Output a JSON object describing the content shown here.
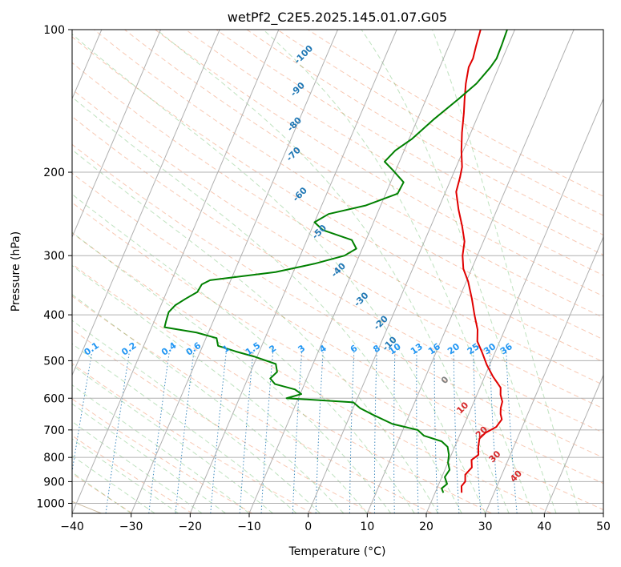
{
  "chart_data": {
    "type": "line",
    "title": "wetPf2_C2E5.2025.145.01.07.G05",
    "xlabel": "Temperature (°C)",
    "ylabel": "Pressure (hPa)",
    "xlim": [
      -40,
      50
    ],
    "ylim": [
      1050,
      100
    ],
    "x_ticks": [
      -40,
      -30,
      -20,
      -10,
      0,
      10,
      20,
      30,
      40,
      50
    ],
    "y_ticks": [
      100,
      200,
      300,
      400,
      500,
      600,
      700,
      800,
      900,
      1000
    ],
    "series": [
      {
        "name": "Temperature",
        "color": "#e00000",
        "points": [
          [
            950,
            24.5
          ],
          [
            920,
            24.0
          ],
          [
            900,
            24.3
          ],
          [
            870,
            23.8
          ],
          [
            840,
            24.4
          ],
          [
            810,
            23.8
          ],
          [
            790,
            24.6
          ],
          [
            760,
            24.0
          ],
          [
            730,
            23.6
          ],
          [
            710,
            24.2
          ],
          [
            690,
            25.6
          ],
          [
            665,
            26.0
          ],
          [
            648,
            25.4
          ],
          [
            630,
            25.0
          ],
          [
            610,
            24.8
          ],
          [
            590,
            24.0
          ],
          [
            570,
            23.5
          ],
          [
            540,
            21.4
          ],
          [
            510,
            19.5
          ],
          [
            480,
            17.8
          ],
          [
            455,
            16.2
          ],
          [
            430,
            15.4
          ],
          [
            400,
            13.8
          ],
          [
            370,
            12.2
          ],
          [
            340,
            10.3
          ],
          [
            320,
            8.6
          ],
          [
            300,
            7.5
          ],
          [
            280,
            6.8
          ],
          [
            260,
            5.3
          ],
          [
            240,
            3.5
          ],
          [
            220,
            1.8
          ],
          [
            205,
            1.4
          ],
          [
            195,
            1.0
          ],
          [
            180,
            -0.3
          ],
          [
            165,
            -1.5
          ],
          [
            150,
            -2.6
          ],
          [
            140,
            -3.5
          ],
          [
            130,
            -4.4
          ],
          [
            120,
            -5.1
          ],
          [
            115,
            -5.0
          ],
          [
            108,
            -5.4
          ],
          [
            100,
            -5.8
          ]
        ]
      },
      {
        "name": "Dew point",
        "color": "#008000",
        "points": [
          [
            950,
            21.4
          ],
          [
            930,
            20.8
          ],
          [
            910,
            21.4
          ],
          [
            880,
            20.5
          ],
          [
            850,
            20.8
          ],
          [
            820,
            20.0
          ],
          [
            790,
            19.6
          ],
          [
            760,
            18.8
          ],
          [
            740,
            17.4
          ],
          [
            720,
            14.0
          ],
          [
            700,
            12.5
          ],
          [
            680,
            7.8
          ],
          [
            650,
            3.8
          ],
          [
            630,
            1.2
          ],
          [
            612,
            -0.4
          ],
          [
            600,
            -12.0
          ],
          [
            588,
            -9.8
          ],
          [
            575,
            -11.2
          ],
          [
            560,
            -15.0
          ],
          [
            545,
            -16.2
          ],
          [
            528,
            -15.5
          ],
          [
            508,
            -16.3
          ],
          [
            490,
            -20.5
          ],
          [
            478,
            -24.0
          ],
          [
            465,
            -27.4
          ],
          [
            448,
            -28.2
          ],
          [
            436,
            -32.0
          ],
          [
            425,
            -37.8
          ],
          [
            412,
            -38.0
          ],
          [
            395,
            -38.2
          ],
          [
            382,
            -37.6
          ],
          [
            370,
            -36.3
          ],
          [
            358,
            -34.8
          ],
          [
            345,
            -34.6
          ],
          [
            338,
            -33.5
          ],
          [
            325,
            -23.0
          ],
          [
            312,
            -17.0
          ],
          [
            300,
            -12.5
          ],
          [
            290,
            -11.0
          ],
          [
            278,
            -12.4
          ],
          [
            265,
            -18.0
          ],
          [
            255,
            -20.0
          ],
          [
            245,
            -18.2
          ],
          [
            235,
            -12.5
          ],
          [
            222,
            -8.0
          ],
          [
            210,
            -7.8
          ],
          [
            198,
            -10.5
          ],
          [
            190,
            -12.5
          ],
          [
            180,
            -11.5
          ],
          [
            170,
            -9.5
          ],
          [
            155,
            -7.3
          ],
          [
            140,
            -4.5
          ],
          [
            130,
            -2.6
          ],
          [
            120,
            -1.4
          ],
          [
            115,
            -1.0
          ],
          [
            108,
            -1.1
          ],
          [
            100,
            -1.3
          ]
        ]
      }
    ],
    "annotations": {
      "mixing_ratio_labels": [
        "0.1",
        "0.2",
        "0.4",
        "0.6",
        "1",
        "1.5",
        "2",
        "3",
        "4",
        "6",
        "8",
        "10",
        "13",
        "16",
        "20",
        "25",
        "30",
        "36"
      ],
      "mixing_ratio_values": [
        0.1,
        0.2,
        0.4,
        0.6,
        1,
        1.5,
        2,
        3,
        4,
        6,
        8,
        10,
        13,
        16,
        20,
        25,
        30,
        36
      ],
      "moist_adiabat_labels": [
        "-100",
        "-90",
        "-80",
        "-70",
        "-60",
        "-50",
        "-40",
        "-30",
        "-20",
        "-10",
        "0",
        "10",
        "20",
        "30",
        "40"
      ],
      "moist_adiabat_label_colors": [
        "#1f77b4",
        "#1f77b4",
        "#1f77b4",
        "#1f77b4",
        "#1f77b4",
        "#1f77b4",
        "#1f77b4",
        "#1f77b4",
        "#1f77b4",
        "#1f77b4",
        "#808080",
        "#d62728",
        "#d62728",
        "#d62728",
        "#d62728"
      ]
    },
    "grid": true,
    "skew": true
  }
}
